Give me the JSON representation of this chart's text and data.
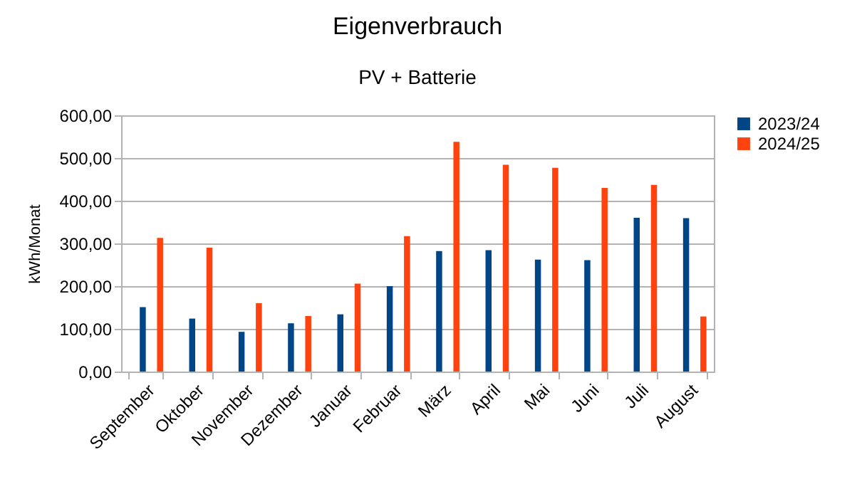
{
  "chart_data": {
    "type": "bar",
    "title": "Eigenverbrauch",
    "subtitle": "PV +  Batterie",
    "ylabel": "kWh/Monat",
    "categories": [
      "September",
      "Oktober",
      "November",
      "Dezember",
      "Januar",
      "Februar",
      "März",
      "April",
      "Mai",
      "Juni",
      "Juli",
      "August"
    ],
    "series": [
      {
        "name": "2023/24",
        "color": "#004586",
        "values": [
          151,
          124,
          93,
          113,
          134,
          200,
          282,
          284,
          262,
          261,
          360,
          359
        ]
      },
      {
        "name": "2024/25",
        "color": "#ff420e",
        "values": [
          313,
          290,
          160,
          130,
          206,
          317,
          538,
          484,
          477,
          430,
          437,
          129
        ]
      }
    ],
    "ylim": [
      0,
      600
    ],
    "yticks": [
      {
        "value": 0,
        "label": "0,00"
      },
      {
        "value": 100,
        "label": "100,00"
      },
      {
        "value": 200,
        "label": "200,00"
      },
      {
        "value": 300,
        "label": "300,00"
      },
      {
        "value": 400,
        "label": "400,00"
      },
      {
        "value": 500,
        "label": "500,00"
      },
      {
        "value": 600,
        "label": "600,00"
      }
    ],
    "grid": "y",
    "legend": "right"
  }
}
